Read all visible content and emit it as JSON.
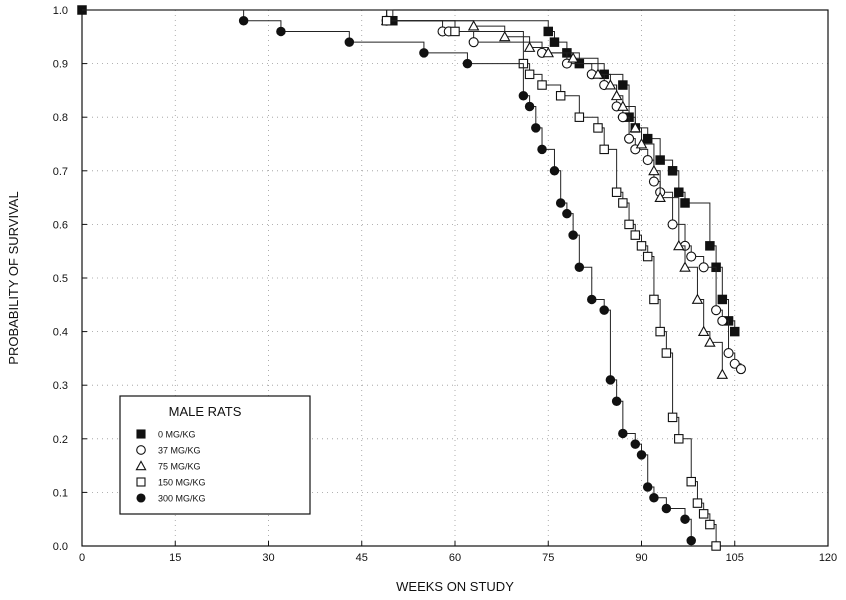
{
  "chart_data": {
    "type": "line",
    "step": true,
    "xlabel": "WEEKS ON STUDY",
    "ylabel": "PROBABILITY OF SURVIVAL",
    "xlim": [
      0,
      120
    ],
    "ylim": [
      0,
      1.0
    ],
    "xticks": [
      0,
      15,
      30,
      45,
      60,
      75,
      90,
      105,
      120
    ],
    "yticks": [
      0.0,
      0.1,
      0.2,
      0.3,
      0.4,
      0.5,
      0.6,
      0.7,
      0.8,
      0.9,
      1.0
    ],
    "grid": true,
    "legend": {
      "title": "MALE RATS",
      "position": "bottom-left"
    },
    "series": [
      {
        "name": "0 MG/KG",
        "marker": "filled-square",
        "points": [
          [
            0,
            1.0
          ],
          [
            50,
            0.98
          ],
          [
            75,
            0.96
          ],
          [
            76,
            0.94
          ],
          [
            78,
            0.92
          ],
          [
            80,
            0.9
          ],
          [
            84,
            0.88
          ],
          [
            87,
            0.86
          ],
          [
            88,
            0.8
          ],
          [
            89,
            0.78
          ],
          [
            91,
            0.76
          ],
          [
            93,
            0.72
          ],
          [
            95,
            0.7
          ],
          [
            96,
            0.66
          ],
          [
            97,
            0.64
          ],
          [
            101,
            0.56
          ],
          [
            102,
            0.52
          ],
          [
            103,
            0.46
          ],
          [
            104,
            0.42
          ],
          [
            105,
            0.4
          ]
        ]
      },
      {
        "name": "37 MG/KG",
        "marker": "open-circle",
        "points": [
          [
            0,
            1.0
          ],
          [
            49,
            0.98
          ],
          [
            58,
            0.96
          ],
          [
            59,
            0.96
          ],
          [
            63,
            0.94
          ],
          [
            74,
            0.92
          ],
          [
            78,
            0.9
          ],
          [
            82,
            0.88
          ],
          [
            84,
            0.86
          ],
          [
            86,
            0.82
          ],
          [
            87,
            0.8
          ],
          [
            88,
            0.76
          ],
          [
            89,
            0.74
          ],
          [
            91,
            0.72
          ],
          [
            92,
            0.68
          ],
          [
            93,
            0.66
          ],
          [
            95,
            0.6
          ],
          [
            97,
            0.56
          ],
          [
            98,
            0.54
          ],
          [
            100,
            0.52
          ],
          [
            102,
            0.44
          ],
          [
            103,
            0.42
          ],
          [
            104,
            0.36
          ],
          [
            105,
            0.34
          ],
          [
            106,
            0.33
          ]
        ]
      },
      {
        "name": "75 MG/KG",
        "marker": "open-triangle",
        "points": [
          [
            0,
            1.0
          ],
          [
            49,
            0.98
          ],
          [
            63,
            0.97
          ],
          [
            68,
            0.95
          ],
          [
            72,
            0.93
          ],
          [
            75,
            0.92
          ],
          [
            79,
            0.91
          ],
          [
            83,
            0.88
          ],
          [
            85,
            0.86
          ],
          [
            86,
            0.84
          ],
          [
            87,
            0.82
          ],
          [
            89,
            0.78
          ],
          [
            90,
            0.75
          ],
          [
            92,
            0.7
          ],
          [
            93,
            0.65
          ],
          [
            96,
            0.56
          ],
          [
            97,
            0.52
          ],
          [
            99,
            0.46
          ],
          [
            100,
            0.4
          ],
          [
            101,
            0.38
          ],
          [
            103,
            0.32
          ]
        ]
      },
      {
        "name": "150 MG/KG",
        "marker": "open-square",
        "points": [
          [
            0,
            1.0
          ],
          [
            49,
            0.98
          ],
          [
            60,
            0.96
          ],
          [
            71,
            0.9
          ],
          [
            72,
            0.88
          ],
          [
            74,
            0.86
          ],
          [
            77,
            0.84
          ],
          [
            80,
            0.8
          ],
          [
            83,
            0.78
          ],
          [
            84,
            0.74
          ],
          [
            86,
            0.66
          ],
          [
            87,
            0.64
          ],
          [
            88,
            0.6
          ],
          [
            89,
            0.58
          ],
          [
            90,
            0.56
          ],
          [
            91,
            0.54
          ],
          [
            92,
            0.46
          ],
          [
            93,
            0.4
          ],
          [
            94,
            0.36
          ],
          [
            95,
            0.24
          ],
          [
            96,
            0.2
          ],
          [
            98,
            0.12
          ],
          [
            99,
            0.08
          ],
          [
            100,
            0.06
          ],
          [
            101,
            0.04
          ],
          [
            102,
            0.0
          ]
        ]
      },
      {
        "name": "300 MG/KG",
        "marker": "filled-circle",
        "points": [
          [
            0,
            1.0
          ],
          [
            26,
            0.98
          ],
          [
            32,
            0.96
          ],
          [
            43,
            0.94
          ],
          [
            55,
            0.92
          ],
          [
            62,
            0.9
          ],
          [
            71,
            0.84
          ],
          [
            72,
            0.82
          ],
          [
            73,
            0.78
          ],
          [
            74,
            0.74
          ],
          [
            76,
            0.7
          ],
          [
            77,
            0.64
          ],
          [
            78,
            0.62
          ],
          [
            79,
            0.58
          ],
          [
            80,
            0.52
          ],
          [
            82,
            0.46
          ],
          [
            84,
            0.44
          ],
          [
            85,
            0.31
          ],
          [
            86,
            0.27
          ],
          [
            87,
            0.21
          ],
          [
            89,
            0.19
          ],
          [
            90,
            0.17
          ],
          [
            91,
            0.11
          ],
          [
            92,
            0.09
          ],
          [
            94,
            0.07
          ],
          [
            97,
            0.05
          ],
          [
            98,
            0.01
          ]
        ]
      }
    ]
  }
}
